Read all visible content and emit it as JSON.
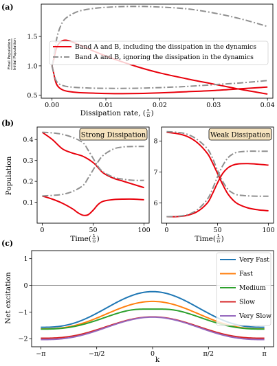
{
  "chart_data": [
    {
      "panel_label": "(a)",
      "type": "line",
      "xlabel_main": "Dissipation rate, (",
      "xlabel_frac": {
        "num": "κ",
        "den": "Ω"
      },
      "xlabel_close": ")",
      "ylabel_fraction": {
        "num": "Final Population",
        "den": "Initial Population"
      },
      "xlim": [
        -0.002,
        0.041
      ],
      "ylim": [
        0.45,
        2.05
      ],
      "xticks": [
        0.0,
        0.01,
        0.02,
        0.03,
        0.04
      ],
      "xtick_labels": [
        "0.00",
        "0.01",
        "0.02",
        "0.03",
        "0.04"
      ],
      "yticks": [
        0.5,
        1.0,
        1.5
      ],
      "ytick_labels": [
        "0.5",
        "1.0",
        "1.5"
      ],
      "legend_position": "upper-center",
      "series": [
        {
          "name": "Band A and B, including the dissipation in the dynamics",
          "color": "#e8000b",
          "style": "solid",
          "x": [
            0.0,
            0.0003,
            0.0007,
            0.0012,
            0.002,
            0.003,
            0.005,
            0.008,
            0.012,
            0.016,
            0.02,
            0.025,
            0.03,
            0.035,
            0.04
          ],
          "y": [
            1.0,
            1.1,
            1.26,
            1.37,
            1.43,
            1.43,
            1.36,
            1.24,
            1.1,
            0.98,
            0.88,
            0.78,
            0.69,
            0.6,
            0.52
          ]
        },
        {
          "name": "",
          "color": "#e8000b",
          "style": "solid",
          "x": [
            0.0,
            0.0003,
            0.0007,
            0.0012,
            0.002,
            0.003,
            0.005,
            0.008,
            0.012,
            0.016,
            0.02,
            0.025,
            0.03,
            0.035,
            0.04
          ],
          "y": [
            1.0,
            0.88,
            0.72,
            0.64,
            0.59,
            0.565,
            0.545,
            0.535,
            0.528,
            0.53,
            0.54,
            0.56,
            0.58,
            0.61,
            0.64
          ]
        },
        {
          "name": "Band A and B, ignoring the dissipation in the dynamics",
          "color": "#909090",
          "style": "dashdot",
          "x": [
            0.0,
            0.0003,
            0.0007,
            0.0012,
            0.002,
            0.003,
            0.005,
            0.008,
            0.011,
            0.014,
            0.017,
            0.02,
            0.025,
            0.03,
            0.035,
            0.04
          ],
          "y": [
            1.0,
            1.14,
            1.38,
            1.58,
            1.75,
            1.84,
            1.93,
            1.98,
            2.0,
            2.01,
            2.01,
            2.0,
            1.97,
            1.9,
            1.8,
            1.67
          ]
        },
        {
          "name": "",
          "color": "#909090",
          "style": "dashdot",
          "x": [
            0.0,
            0.0003,
            0.0007,
            0.0012,
            0.002,
            0.003,
            0.005,
            0.008,
            0.012,
            0.016,
            0.02,
            0.025,
            0.03,
            0.035,
            0.04
          ],
          "y": [
            1.0,
            0.88,
            0.76,
            0.7,
            0.665,
            0.645,
            0.63,
            0.62,
            0.617,
            0.62,
            0.63,
            0.65,
            0.68,
            0.71,
            0.75
          ]
        }
      ]
    },
    {
      "panel_label": "(b)",
      "type": "line",
      "box_label": "Strong Dissipation",
      "xlabel_main": "Time(",
      "xlabel_frac": {
        "num": "1",
        "den": "Ω"
      },
      "xlabel_close": ")",
      "ylabel": "Population",
      "xlim": [
        -5,
        105
      ],
      "ylim": [
        0.0,
        0.46
      ],
      "xticks": [
        0,
        50,
        100
      ],
      "xtick_labels": [
        "0",
        "50",
        "100"
      ],
      "yticks": [
        0.1,
        0.2,
        0.3,
        0.4
      ],
      "ytick_labels": [
        "0.1",
        "0.2",
        "0.3",
        "0.4"
      ],
      "series": [
        {
          "color": "#e8000b",
          "style": "solid",
          "x": [
            0,
            10,
            20,
            30,
            40,
            50,
            55,
            60,
            70,
            80,
            90,
            100
          ],
          "y": [
            0.435,
            0.4,
            0.355,
            0.335,
            0.32,
            0.29,
            0.265,
            0.24,
            0.215,
            0.2,
            0.185,
            0.17
          ]
        },
        {
          "color": "#e8000b",
          "style": "solid",
          "x": [
            0,
            10,
            20,
            30,
            35,
            40,
            45,
            50,
            55,
            60,
            70,
            80,
            90,
            100
          ],
          "y": [
            0.13,
            0.115,
            0.095,
            0.068,
            0.05,
            0.038,
            0.04,
            0.062,
            0.09,
            0.105,
            0.113,
            0.115,
            0.115,
            0.112
          ]
        },
        {
          "color": "#909090",
          "style": "dashdot",
          "x": [
            0,
            10,
            20,
            30,
            40,
            45,
            50,
            55,
            60,
            70,
            80,
            90,
            100
          ],
          "y": [
            0.435,
            0.432,
            0.425,
            0.41,
            0.385,
            0.35,
            0.31,
            0.27,
            0.245,
            0.22,
            0.21,
            0.205,
            0.205
          ]
        },
        {
          "color": "#909090",
          "style": "dashdot",
          "x": [
            0,
            10,
            20,
            30,
            40,
            45,
            50,
            55,
            60,
            70,
            80,
            90,
            100
          ],
          "y": [
            0.13,
            0.133,
            0.138,
            0.152,
            0.18,
            0.215,
            0.255,
            0.295,
            0.325,
            0.355,
            0.365,
            0.367,
            0.367
          ]
        }
      ]
    },
    {
      "type": "line",
      "box_label": "Weak Dissipation",
      "xlabel_main": "Time(",
      "xlabel_frac": {
        "num": "1",
        "den": "Ω"
      },
      "xlabel_close": ")",
      "xlim": [
        -5,
        105
      ],
      "ylim": [
        5.35,
        8.45
      ],
      "xticks": [
        0,
        50,
        100
      ],
      "xtick_labels": [
        "0",
        "50",
        "100"
      ],
      "yticks": [
        6,
        7,
        8
      ],
      "ytick_labels": [
        "6",
        "7",
        "8"
      ],
      "series": [
        {
          "color": "#e8000b",
          "style": "solid",
          "x": [
            0,
            10,
            20,
            30,
            40,
            45,
            50,
            55,
            60,
            65,
            70,
            80,
            90,
            100
          ],
          "y": [
            8.28,
            8.24,
            8.15,
            7.95,
            7.6,
            7.3,
            6.95,
            6.6,
            6.3,
            6.1,
            5.97,
            5.84,
            5.78,
            5.75
          ]
        },
        {
          "color": "#e8000b",
          "style": "solid",
          "x": [
            0,
            10,
            20,
            30,
            40,
            45,
            50,
            55,
            60,
            65,
            70,
            80,
            90,
            100
          ],
          "y": [
            5.56,
            5.56,
            5.6,
            5.72,
            6.0,
            6.3,
            6.65,
            6.95,
            7.13,
            7.22,
            7.26,
            7.27,
            7.25,
            7.22
          ]
        },
        {
          "color": "#909090",
          "style": "dashdot",
          "x": [
            0,
            10,
            20,
            30,
            40,
            45,
            50,
            55,
            60,
            65,
            70,
            80,
            90,
            100
          ],
          "y": [
            8.3,
            8.28,
            8.22,
            8.05,
            7.75,
            7.45,
            7.05,
            6.7,
            6.45,
            6.32,
            6.26,
            6.23,
            6.22,
            6.22
          ]
        },
        {
          "color": "#909090",
          "style": "dashdot",
          "x": [
            0,
            10,
            20,
            30,
            40,
            45,
            50,
            55,
            60,
            65,
            70,
            80,
            90,
            100
          ],
          "y": [
            5.56,
            5.57,
            5.62,
            5.78,
            6.12,
            6.45,
            6.85,
            7.2,
            7.45,
            7.58,
            7.64,
            7.67,
            7.67,
            7.67
          ]
        }
      ]
    },
    {
      "panel_label": "(c)",
      "type": "line",
      "xlabel": "k",
      "ylabel": "Net excitation",
      "xlim": [
        -3.4,
        3.4
      ],
      "ylim": [
        -2.3,
        1.3
      ],
      "xticks": [
        -3.14159,
        -1.5708,
        0,
        1.5708,
        3.14159
      ],
      "xtick_labels": [
        "−π",
        "−π/2",
        "0",
        "π/2",
        "π"
      ],
      "yticks": [
        -2,
        -1,
        0,
        1
      ],
      "ytick_labels": [
        "−2",
        "−1",
        "0",
        "1"
      ],
      "hline_y": 0,
      "legend_position": "upper-right",
      "series": [
        {
          "name": "Very Fast",
          "color": "#1f77b4",
          "A": -1.57,
          "B": 1.335,
          "C": 0.0
        },
        {
          "name": "Fast",
          "color": "#ff7f0e",
          "A": -1.63,
          "B": 1.03,
          "C": 0.0
        },
        {
          "name": "Medium",
          "color": "#2ca02c",
          "A": -1.67,
          "B": 0.84,
          "C": 0.09
        },
        {
          "name": "Slow",
          "color": "#d62728",
          "A": -1.98,
          "B": 0.8,
          "C": 0.0
        },
        {
          "name": "Very Slow",
          "color": "#9467bd",
          "A": -2.03,
          "B": 0.84,
          "C": 0.0
        }
      ]
    }
  ]
}
